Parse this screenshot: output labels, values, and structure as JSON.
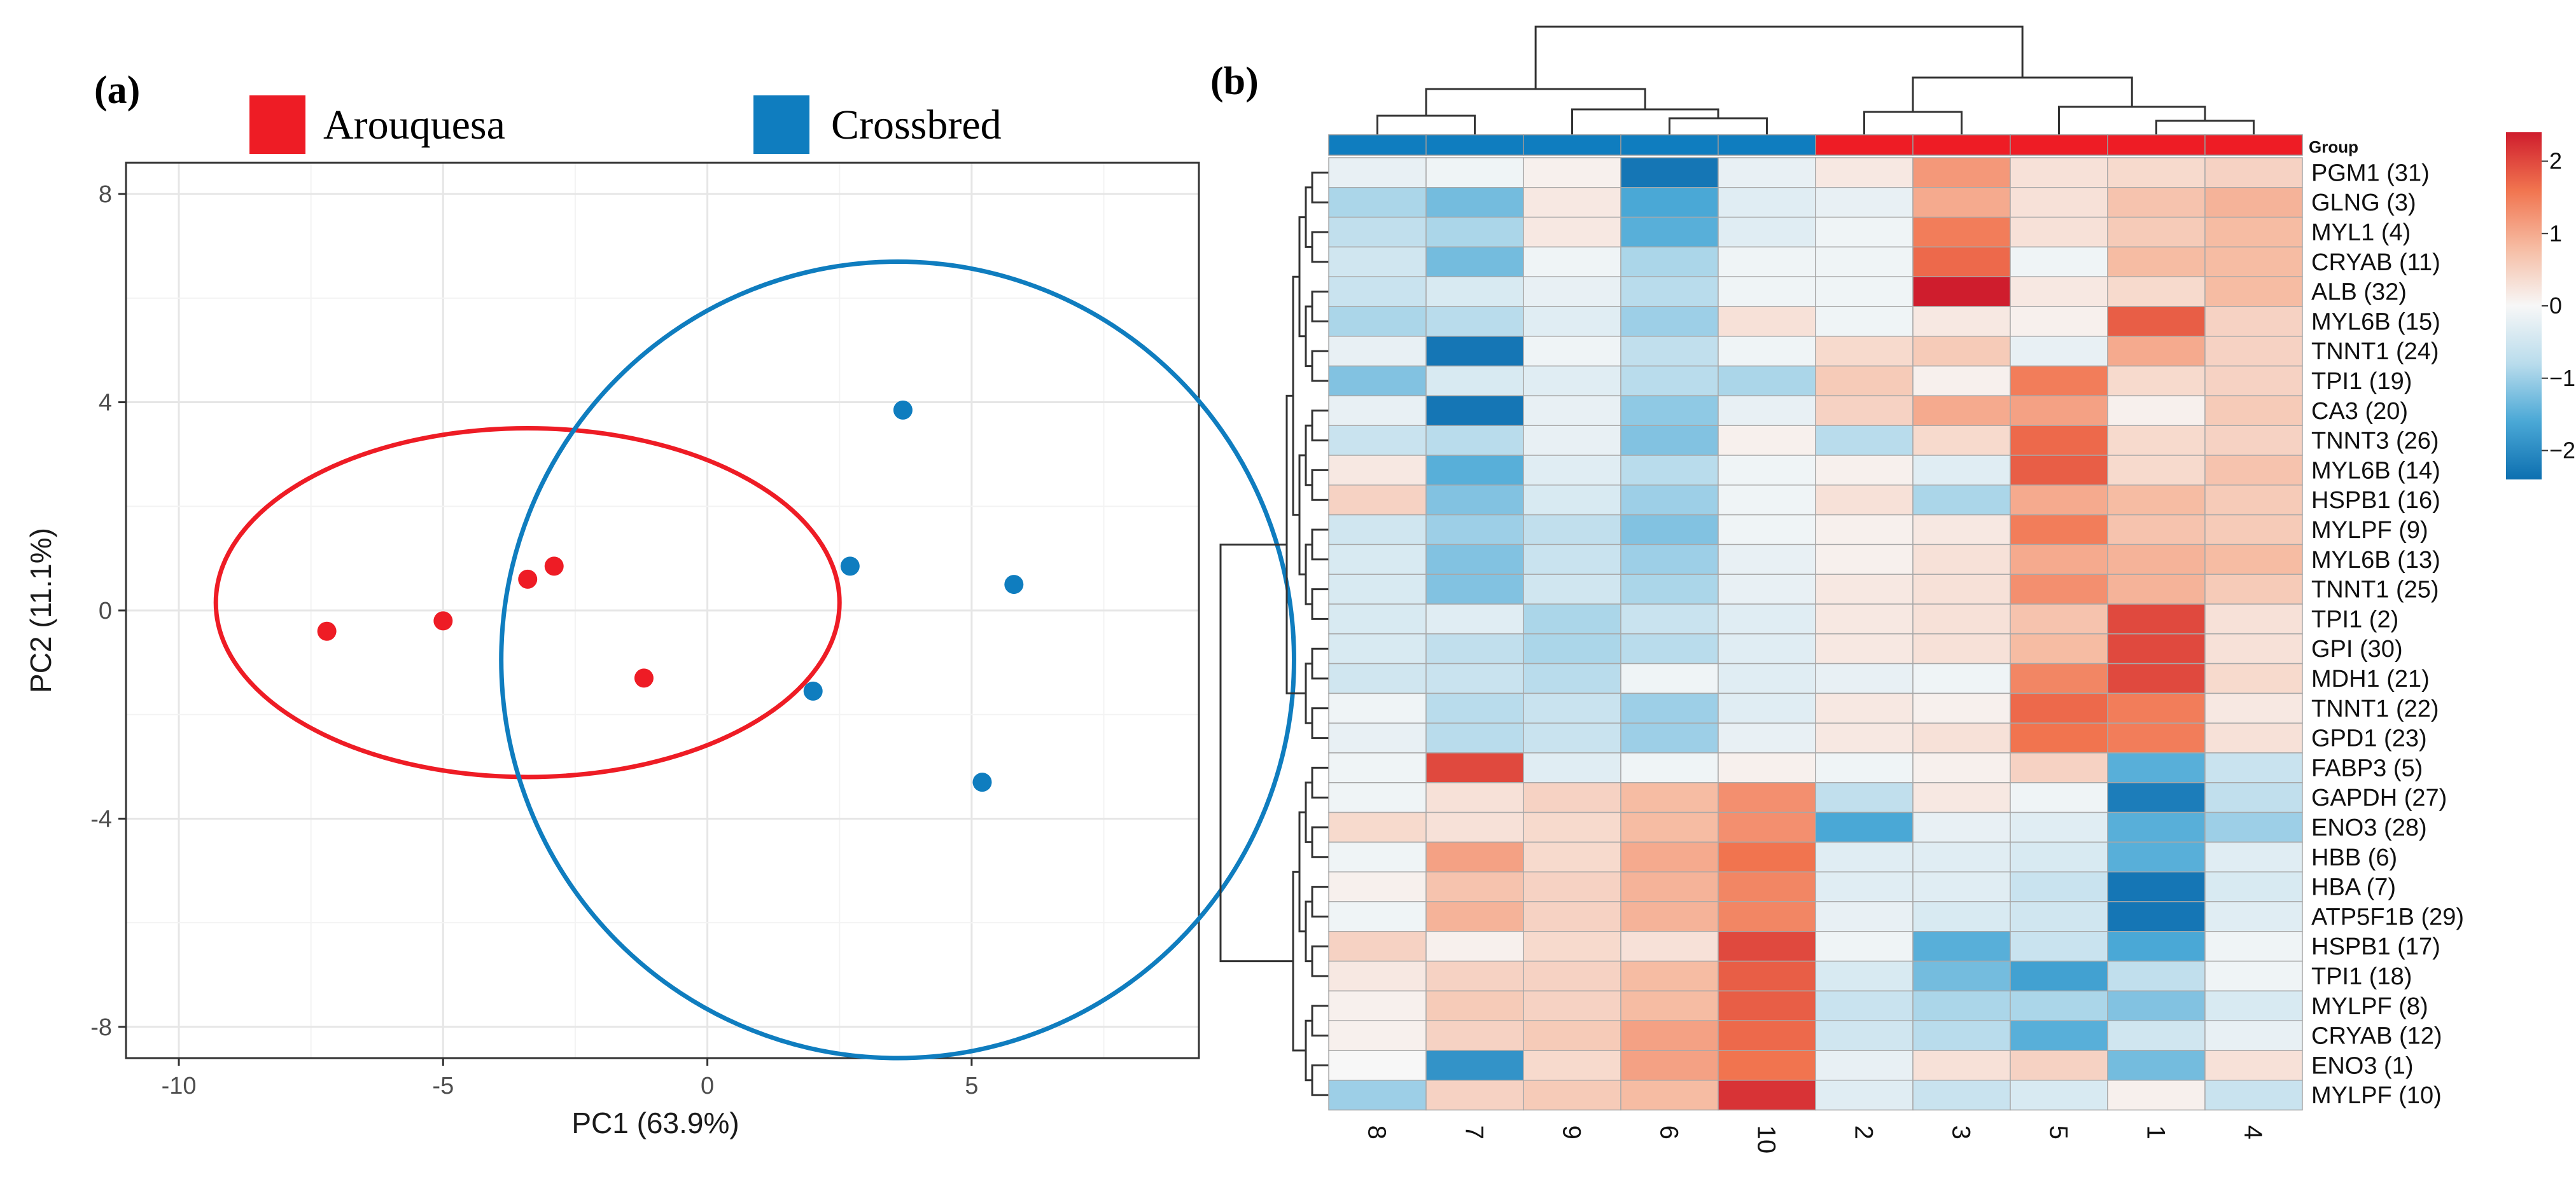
{
  "panels": {
    "a_label": "(a)",
    "b_label": "(b)"
  },
  "legend": {
    "items": [
      {
        "label": "Arouquesa",
        "color": "#ee1c25"
      },
      {
        "label": "Crossbred",
        "color": "#0f7dbf"
      }
    ]
  },
  "chart_data": [
    {
      "type": "scatter",
      "title": "",
      "xlabel": "PC1 (63.9%)",
      "ylabel": "PC2 (11.1%)",
      "xlim": [
        -11,
        9.3
      ],
      "ylim": [
        -8.6,
        8.6
      ],
      "xticks": [
        -10,
        -5,
        0,
        5
      ],
      "yticks": [
        8,
        4,
        0,
        -4,
        -8
      ],
      "xtick_labels": [
        "-10",
        "-5",
        "0",
        "5"
      ],
      "ytick_labels": [
        "8",
        "4",
        "0",
        "-4",
        "-8"
      ],
      "grid": true,
      "series": [
        {
          "name": "Arouquesa",
          "color": "#ee1c25",
          "points": [
            [
              -7.2,
              -0.4
            ],
            [
              -5.0,
              -0.2
            ],
            [
              -3.4,
              0.6
            ],
            [
              -2.9,
              0.85
            ],
            [
              -1.2,
              -1.3
            ]
          ],
          "ellipse": {
            "cx": -3.4,
            "cy": 0.15,
            "rx": 5.9,
            "ry": 3.35,
            "angle_deg": 0
          }
        },
        {
          "name": "Crossbred",
          "color": "#0f7dbf",
          "points": [
            [
              3.7,
              3.85
            ],
            [
              2.7,
              0.85
            ],
            [
              5.8,
              0.5
            ],
            [
              2.0,
              -1.55
            ],
            [
              5.2,
              -3.3
            ]
          ],
          "ellipse": {
            "cx": 3.6,
            "cy": -0.95,
            "rx": 7.5,
            "ry": 7.65,
            "angle_deg": 0
          }
        }
      ]
    },
    {
      "type": "heatmap",
      "title": "",
      "annotation_title": "Group",
      "columns": [
        "8",
        "7",
        "9",
        "6",
        "10",
        "2",
        "3",
        "5",
        "1",
        "4"
      ],
      "column_groups": [
        "Crossbred",
        "Crossbred",
        "Crossbred",
        "Crossbred",
        "Crossbred",
        "Arouquesa",
        "Arouquesa",
        "Arouquesa",
        "Arouquesa",
        "Arouquesa"
      ],
      "rows": [
        "PGM1 (31)",
        "GLNG (3)",
        "MYL1 (4)",
        "CRYAB (11)",
        "ALB (32)",
        "MYL6B (15)",
        "TNNT1 (24)",
        "TPI1 (19)",
        "CA3 (20)",
        "TNNT3 (26)",
        "MYL6B (14)",
        "HSPB1 (16)",
        "MYLPF (9)",
        "MYL6B (13)",
        "TNNT1 (25)",
        "TPI1 (2)",
        "GPI (30)",
        "MDH1 (21)",
        "TNNT1 (22)",
        "GPD1 (23)",
        "FABP3 (5)",
        "GAPDH (27)",
        "ENO3 (28)",
        "HBB (6)",
        "HBA (7)",
        "ATP5F1B (29)",
        "HSPB1 (17)",
        "TPI1 (18)",
        "MYLPF (8)",
        "CRYAB (12)",
        "ENO3 (1)",
        "MYLPF (10)"
      ],
      "values": [
        [
          -0.2,
          -0.1,
          0.1,
          -2.3,
          -0.2,
          0.2,
          1.2,
          0.3,
          0.4,
          0.5
        ],
        [
          -0.9,
          -1.3,
          0.2,
          -1.6,
          -0.3,
          -0.2,
          1.0,
          0.3,
          0.7,
          0.9
        ],
        [
          -0.7,
          -0.9,
          0.2,
          -1.5,
          -0.3,
          -0.1,
          1.5,
          0.3,
          0.6,
          0.8
        ],
        [
          -0.5,
          -1.3,
          -0.1,
          -0.9,
          -0.1,
          -0.1,
          1.7,
          -0.1,
          0.8,
          0.8
        ],
        [
          -0.6,
          -0.4,
          -0.2,
          -0.8,
          -0.1,
          -0.1,
          2.4,
          0.2,
          0.4,
          0.8
        ],
        [
          -0.9,
          -0.8,
          -0.3,
          -1.0,
          0.3,
          -0.1,
          0.2,
          0.1,
          1.8,
          0.5
        ],
        [
          -0.2,
          -2.3,
          -0.1,
          -0.7,
          -0.1,
          0.4,
          0.6,
          -0.2,
          1.0,
          0.5
        ],
        [
          -1.2,
          -0.4,
          -0.3,
          -0.8,
          -0.9,
          0.6,
          0.1,
          1.5,
          0.4,
          0.5
        ],
        [
          -0.2,
          -2.3,
          -0.2,
          -1.1,
          -0.2,
          0.5,
          1.0,
          1.1,
          0.1,
          0.6
        ],
        [
          -0.6,
          -0.8,
          -0.2,
          -1.2,
          0.1,
          -0.8,
          0.4,
          1.7,
          0.4,
          0.5
        ],
        [
          0.2,
          -1.5,
          -0.3,
          -0.8,
          -0.1,
          0.1,
          -0.3,
          1.8,
          0.4,
          0.7
        ],
        [
          0.5,
          -1.2,
          -0.4,
          -1.0,
          -0.1,
          0.3,
          -0.9,
          1.0,
          0.8,
          0.6
        ],
        [
          -0.5,
          -1.0,
          -0.7,
          -1.2,
          -0.1,
          0.1,
          0.2,
          1.5,
          0.7,
          0.6
        ],
        [
          -0.4,
          -1.2,
          -0.6,
          -1.0,
          -0.2,
          0.1,
          0.3,
          1.0,
          0.9,
          0.8
        ],
        [
          -0.4,
          -1.2,
          -0.5,
          -0.9,
          -0.2,
          0.2,
          0.3,
          1.3,
          0.9,
          0.6
        ],
        [
          -0.4,
          -0.3,
          -0.9,
          -0.6,
          -0.3,
          0.2,
          0.3,
          0.7,
          2.0,
          0.3
        ],
        [
          -0.4,
          -0.7,
          -0.9,
          -0.8,
          -0.3,
          0.2,
          0.3,
          0.8,
          2.0,
          0.3
        ],
        [
          -0.5,
          -0.6,
          -0.8,
          -0.1,
          -0.3,
          -0.2,
          -0.1,
          1.4,
          2.0,
          0.4
        ],
        [
          -0.1,
          -0.8,
          -0.6,
          -1.0,
          -0.3,
          0.2,
          0.1,
          1.7,
          1.5,
          0.2
        ],
        [
          -0.2,
          -0.8,
          -0.6,
          -1.0,
          -0.2,
          0.2,
          0.3,
          1.6,
          1.5,
          0.3
        ],
        [
          -0.1,
          2.0,
          -0.3,
          -0.1,
          0.1,
          -0.1,
          0.1,
          0.5,
          -1.5,
          -0.6
        ],
        [
          -0.1,
          0.3,
          0.5,
          0.8,
          1.3,
          -0.7,
          0.2,
          -0.1,
          -2.2,
          -0.7
        ],
        [
          0.4,
          0.3,
          0.4,
          0.8,
          1.3,
          -1.6,
          -0.2,
          -0.3,
          -1.5,
          -1.0
        ],
        [
          -0.1,
          1.1,
          0.4,
          1.0,
          1.6,
          -0.3,
          -0.3,
          -0.4,
          -1.5,
          -0.3
        ],
        [
          0.1,
          0.7,
          0.5,
          0.9,
          1.4,
          -0.3,
          -0.3,
          -0.6,
          -2.3,
          -0.4
        ],
        [
          -0.1,
          0.9,
          0.5,
          0.9,
          1.4,
          -0.2,
          -0.4,
          -0.5,
          -2.3,
          -0.3
        ],
        [
          0.5,
          0.1,
          0.4,
          0.3,
          2.0,
          -0.1,
          -1.5,
          -0.6,
          -1.6,
          -0.1
        ],
        [
          0.2,
          0.5,
          0.5,
          0.8,
          1.8,
          -0.4,
          -1.3,
          -1.7,
          -0.7,
          -0.1
        ],
        [
          0.1,
          0.6,
          0.5,
          0.8,
          1.8,
          -0.6,
          -0.9,
          -0.9,
          -1.2,
          -0.4
        ],
        [
          0.1,
          0.5,
          0.6,
          1.1,
          1.7,
          -0.5,
          -0.8,
          -1.5,
          -0.5,
          -0.2
        ],
        [
          0.0,
          -1.9,
          0.4,
          1.1,
          1.6,
          -0.2,
          0.3,
          0.5,
          -1.3,
          0.3
        ],
        [
          -1.0,
          0.5,
          0.6,
          0.8,
          2.2,
          -0.3,
          -0.6,
          -0.4,
          0.1,
          -0.6
        ]
      ],
      "colorbar": {
        "min": -2.4,
        "max": 2.4,
        "ticks": [
          2,
          1,
          0,
          -1,
          -2
        ],
        "tick_labels": [
          "2",
          "1",
          "0",
          "−1",
          "−2"
        ],
        "colors": [
          "#0d6fb0",
          "#4aa8d6",
          "#b9dcec",
          "#f7f7f7",
          "#f6bca3",
          "#f1744f",
          "#cf1d2d"
        ]
      }
    }
  ]
}
